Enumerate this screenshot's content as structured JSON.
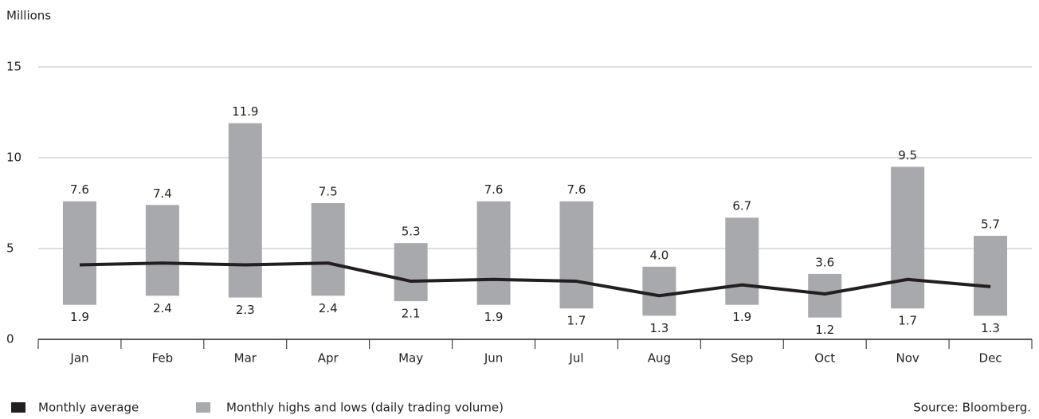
{
  "chart_data": {
    "type": "range-bar-line",
    "y_axis_label": "Millions",
    "source": "Source: Bloomberg.",
    "categories": [
      "Jan",
      "Feb",
      "Mar",
      "Apr",
      "May",
      "Jun",
      "Jul",
      "Aug",
      "Sep",
      "Oct",
      "Nov",
      "Dec"
    ],
    "range": {
      "name": "Monthly highs and lows (daily trading volume)",
      "color": "#a7a9ac",
      "highs": [
        7.6,
        7.4,
        11.9,
        7.5,
        5.3,
        7.6,
        7.6,
        4.0,
        6.7,
        3.6,
        9.5,
        5.7
      ],
      "highs_labels": [
        "7.6",
        "7.4",
        "11.9",
        "7.5",
        "5.3",
        "7.6",
        "7.6",
        "4.0",
        "6.7",
        "3.6",
        "9.5",
        "5.7"
      ],
      "lows": [
        1.9,
        2.4,
        2.3,
        2.4,
        2.1,
        1.9,
        1.7,
        1.3,
        1.9,
        1.2,
        1.7,
        1.3
      ],
      "lows_labels": [
        "1.9",
        "2.4",
        "2.3",
        "2.4",
        "2.1",
        "1.9",
        "1.7",
        "1.3",
        "1.9",
        "1.2",
        "1.7",
        "1.3"
      ]
    },
    "line": {
      "name": "Monthly average",
      "color": "#231f20",
      "values": [
        4.1,
        4.2,
        4.1,
        4.2,
        3.2,
        3.3,
        3.2,
        2.4,
        3.0,
        2.5,
        3.3,
        2.9
      ]
    },
    "ylim": [
      0,
      15
    ],
    "yticks": [
      0,
      5,
      10,
      15
    ],
    "grid": true
  }
}
